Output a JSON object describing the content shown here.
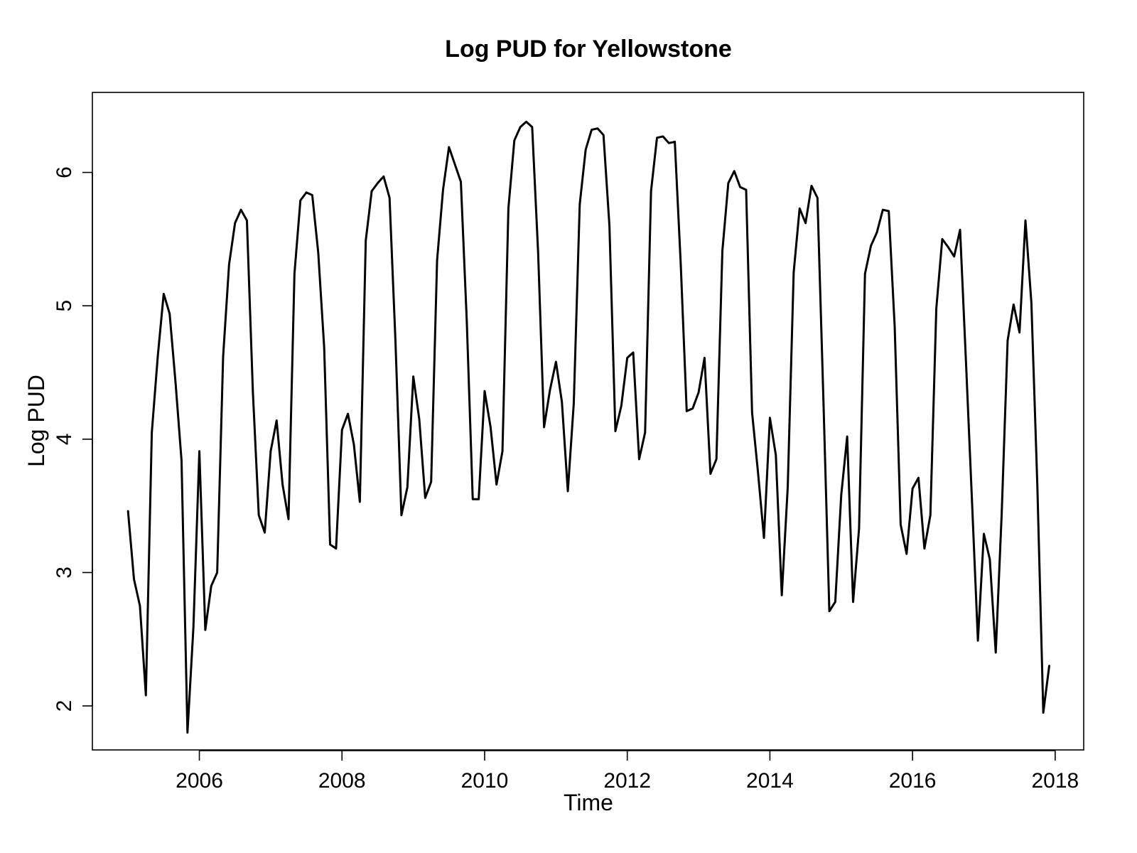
{
  "chart_data": {
    "type": "line",
    "title": "Log PUD for Yellowstone",
    "xlabel": "Time",
    "ylabel": "Log PUD",
    "xlim": [
      2004.5,
      2018.4
    ],
    "ylim": [
      1.67,
      6.6
    ],
    "x_ticks": [
      2006,
      2008,
      2010,
      2012,
      2014,
      2016,
      2018
    ],
    "y_ticks": [
      2,
      3,
      4,
      5,
      6
    ],
    "grid": false,
    "line_color": "#000000",
    "series": [
      {
        "start_year": 2005,
        "frequency": 12,
        "values": [
          3.46,
          2.95,
          2.75,
          2.08,
          4.05,
          4.62,
          5.09,
          4.94,
          4.42,
          3.84,
          1.8,
          2.59,
          3.91,
          2.57,
          2.9,
          3.0,
          4.62,
          5.31,
          5.62,
          5.72,
          5.64,
          4.36,
          3.43,
          3.3,
          3.91,
          4.14,
          3.66,
          3.4,
          5.24,
          5.79,
          5.85,
          5.83,
          5.4,
          4.69,
          3.21,
          3.18,
          4.07,
          4.19,
          3.96,
          3.53,
          5.49,
          5.86,
          5.92,
          5.97,
          5.81,
          4.73,
          3.43,
          3.64,
          4.47,
          4.15,
          3.56,
          3.68,
          5.34,
          5.87,
          6.19,
          6.06,
          5.93,
          4.88,
          3.55,
          3.55,
          4.36,
          4.09,
          3.66,
          3.91,
          5.73,
          6.24,
          6.34,
          6.38,
          6.34,
          5.4,
          4.09,
          4.37,
          4.58,
          4.28,
          3.61,
          4.27,
          5.76,
          6.17,
          6.32,
          6.33,
          6.28,
          5.6,
          4.06,
          4.25,
          4.61,
          4.65,
          3.85,
          4.05,
          5.86,
          6.26,
          6.27,
          6.22,
          6.23,
          5.31,
          4.21,
          4.23,
          4.35,
          4.61,
          3.74,
          3.85,
          5.41,
          5.92,
          6.01,
          5.89,
          5.87,
          4.2,
          3.75,
          3.26,
          4.16,
          3.88,
          2.83,
          3.64,
          5.25,
          5.73,
          5.62,
          5.9,
          5.81,
          4.3,
          2.71,
          2.78,
          3.58,
          4.02,
          2.78,
          3.33,
          5.24,
          5.45,
          5.55,
          5.72,
          5.71,
          4.84,
          3.36,
          3.14,
          3.63,
          3.71,
          3.18,
          3.43,
          4.98,
          5.5,
          5.44,
          5.37,
          5.57,
          4.57,
          3.54,
          2.49,
          3.29,
          3.1,
          2.4,
          3.44,
          4.74,
          5.01,
          4.8,
          5.64,
          5.02,
          3.65,
          1.95,
          2.3
        ]
      }
    ]
  }
}
